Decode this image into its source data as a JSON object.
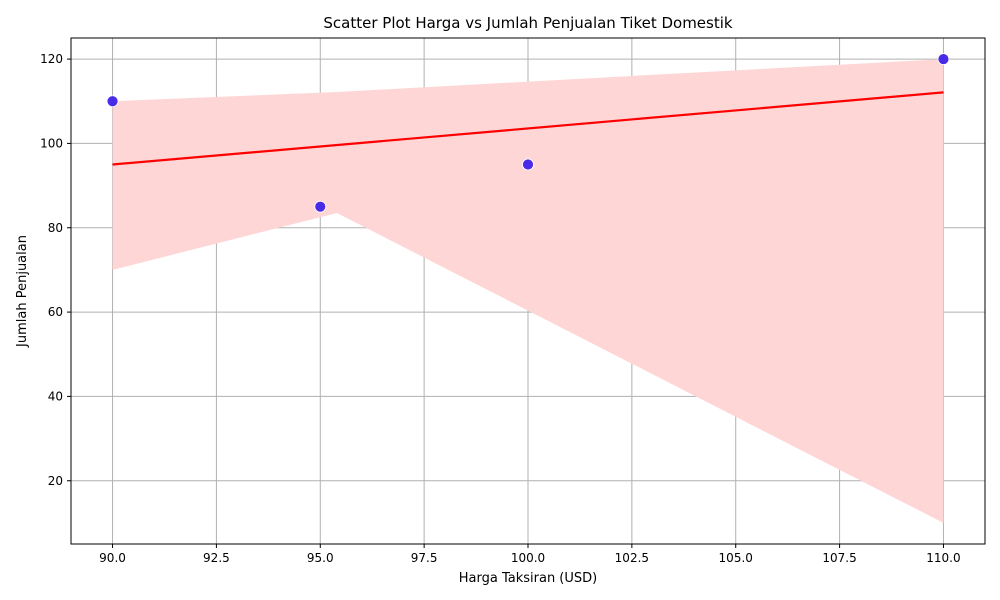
{
  "chart_data": {
    "type": "scatter",
    "title": "Scatter Plot Harga vs Jumlah Penjualan Tiket Domestik",
    "xlabel": "Harga Taksiran (USD)",
    "ylabel": "Jumlah Penjualan",
    "xlim": [
      89,
      111
    ],
    "ylim": [
      5,
      125
    ],
    "grid": true,
    "x_ticks": [
      90.0,
      92.5,
      95.0,
      97.5,
      100.0,
      102.5,
      105.0,
      107.5,
      110.0
    ],
    "x_tick_labels": [
      "90.0",
      "92.5",
      "95.0",
      "97.5",
      "100.0",
      "102.5",
      "105.0",
      "107.5",
      "110.0"
    ],
    "y_ticks": [
      20,
      40,
      60,
      80,
      100,
      120
    ],
    "y_tick_labels": [
      "20",
      "40",
      "60",
      "80",
      "100",
      "120"
    ],
    "points": [
      {
        "x": 90,
        "y": 110
      },
      {
        "x": 95,
        "y": 85
      },
      {
        "x": 100,
        "y": 95
      },
      {
        "x": 110,
        "y": 120
      }
    ],
    "trend_line": {
      "x": [
        90,
        110
      ],
      "y": [
        95,
        112.1
      ]
    },
    "confidence_band": {
      "upper": [
        [
          90,
          110
        ],
        [
          95.4,
          112.2
        ],
        [
          110,
          120
        ]
      ],
      "lower": [
        [
          90,
          70
        ],
        [
          95.4,
          83.5
        ],
        [
          110,
          10
        ]
      ]
    },
    "colors": {
      "points": "#3f21e8",
      "trend_line": "#ff0000",
      "band": "#ffd6d6",
      "grid": "#b0b0b0"
    }
  }
}
